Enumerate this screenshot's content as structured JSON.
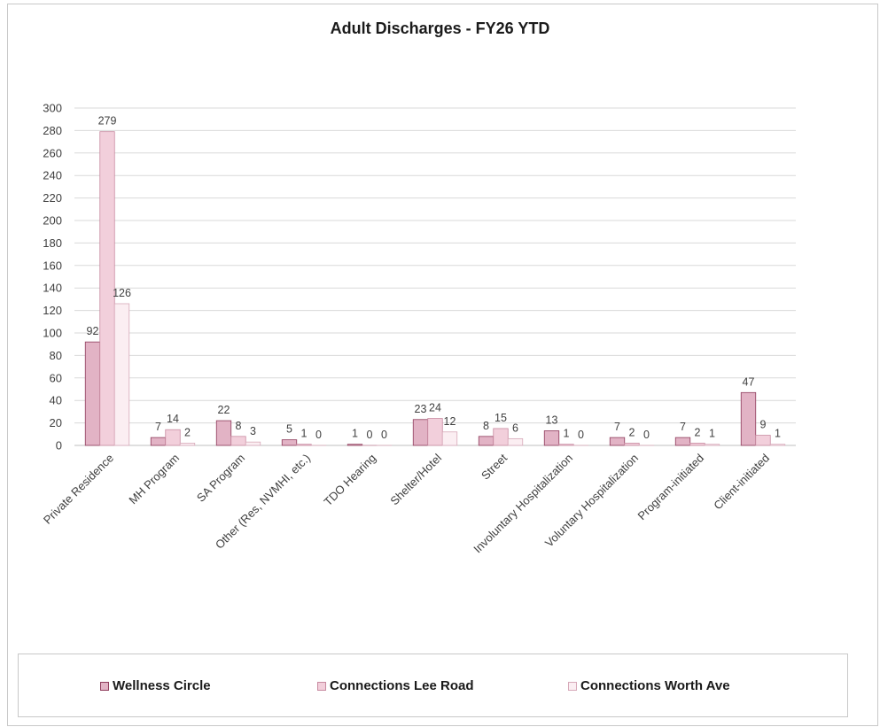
{
  "chart_data": {
    "type": "bar",
    "title": "Adult Discharges - FY26 YTD",
    "xlabel": "",
    "ylabel": "",
    "ylim": [
      0,
      300
    ],
    "ytick_step": 20,
    "grid": true,
    "legend_position": "bottom",
    "categories": [
      "Private Residence",
      "MH Program",
      "SA Program",
      "Other (Res, NVMHI, etc.)",
      "TDO Hearing",
      "Shelter/Hotel",
      "Street",
      "Involuntary Hospitalization",
      "Voluntary Hospitalization",
      "Program-initiated",
      "Client-initiated"
    ],
    "series": [
      {
        "name": "Wellness Circle",
        "values": [
          92,
          7,
          22,
          5,
          1,
          23,
          8,
          13,
          7,
          7,
          47
        ],
        "color": "#e2b3c5",
        "stroke": "#8e3b5b"
      },
      {
        "name": "Connections Lee Road",
        "values": [
          279,
          14,
          8,
          1,
          0,
          24,
          15,
          1,
          2,
          2,
          9
        ],
        "color": "#f2cfdb",
        "stroke": "#c88aa0"
      },
      {
        "name": "Connections Worth Ave",
        "values": [
          126,
          2,
          3,
          0,
          0,
          12,
          6,
          0,
          0,
          1,
          1
        ],
        "color": "#fbeef2",
        "stroke": "#d7a9b9"
      }
    ]
  }
}
